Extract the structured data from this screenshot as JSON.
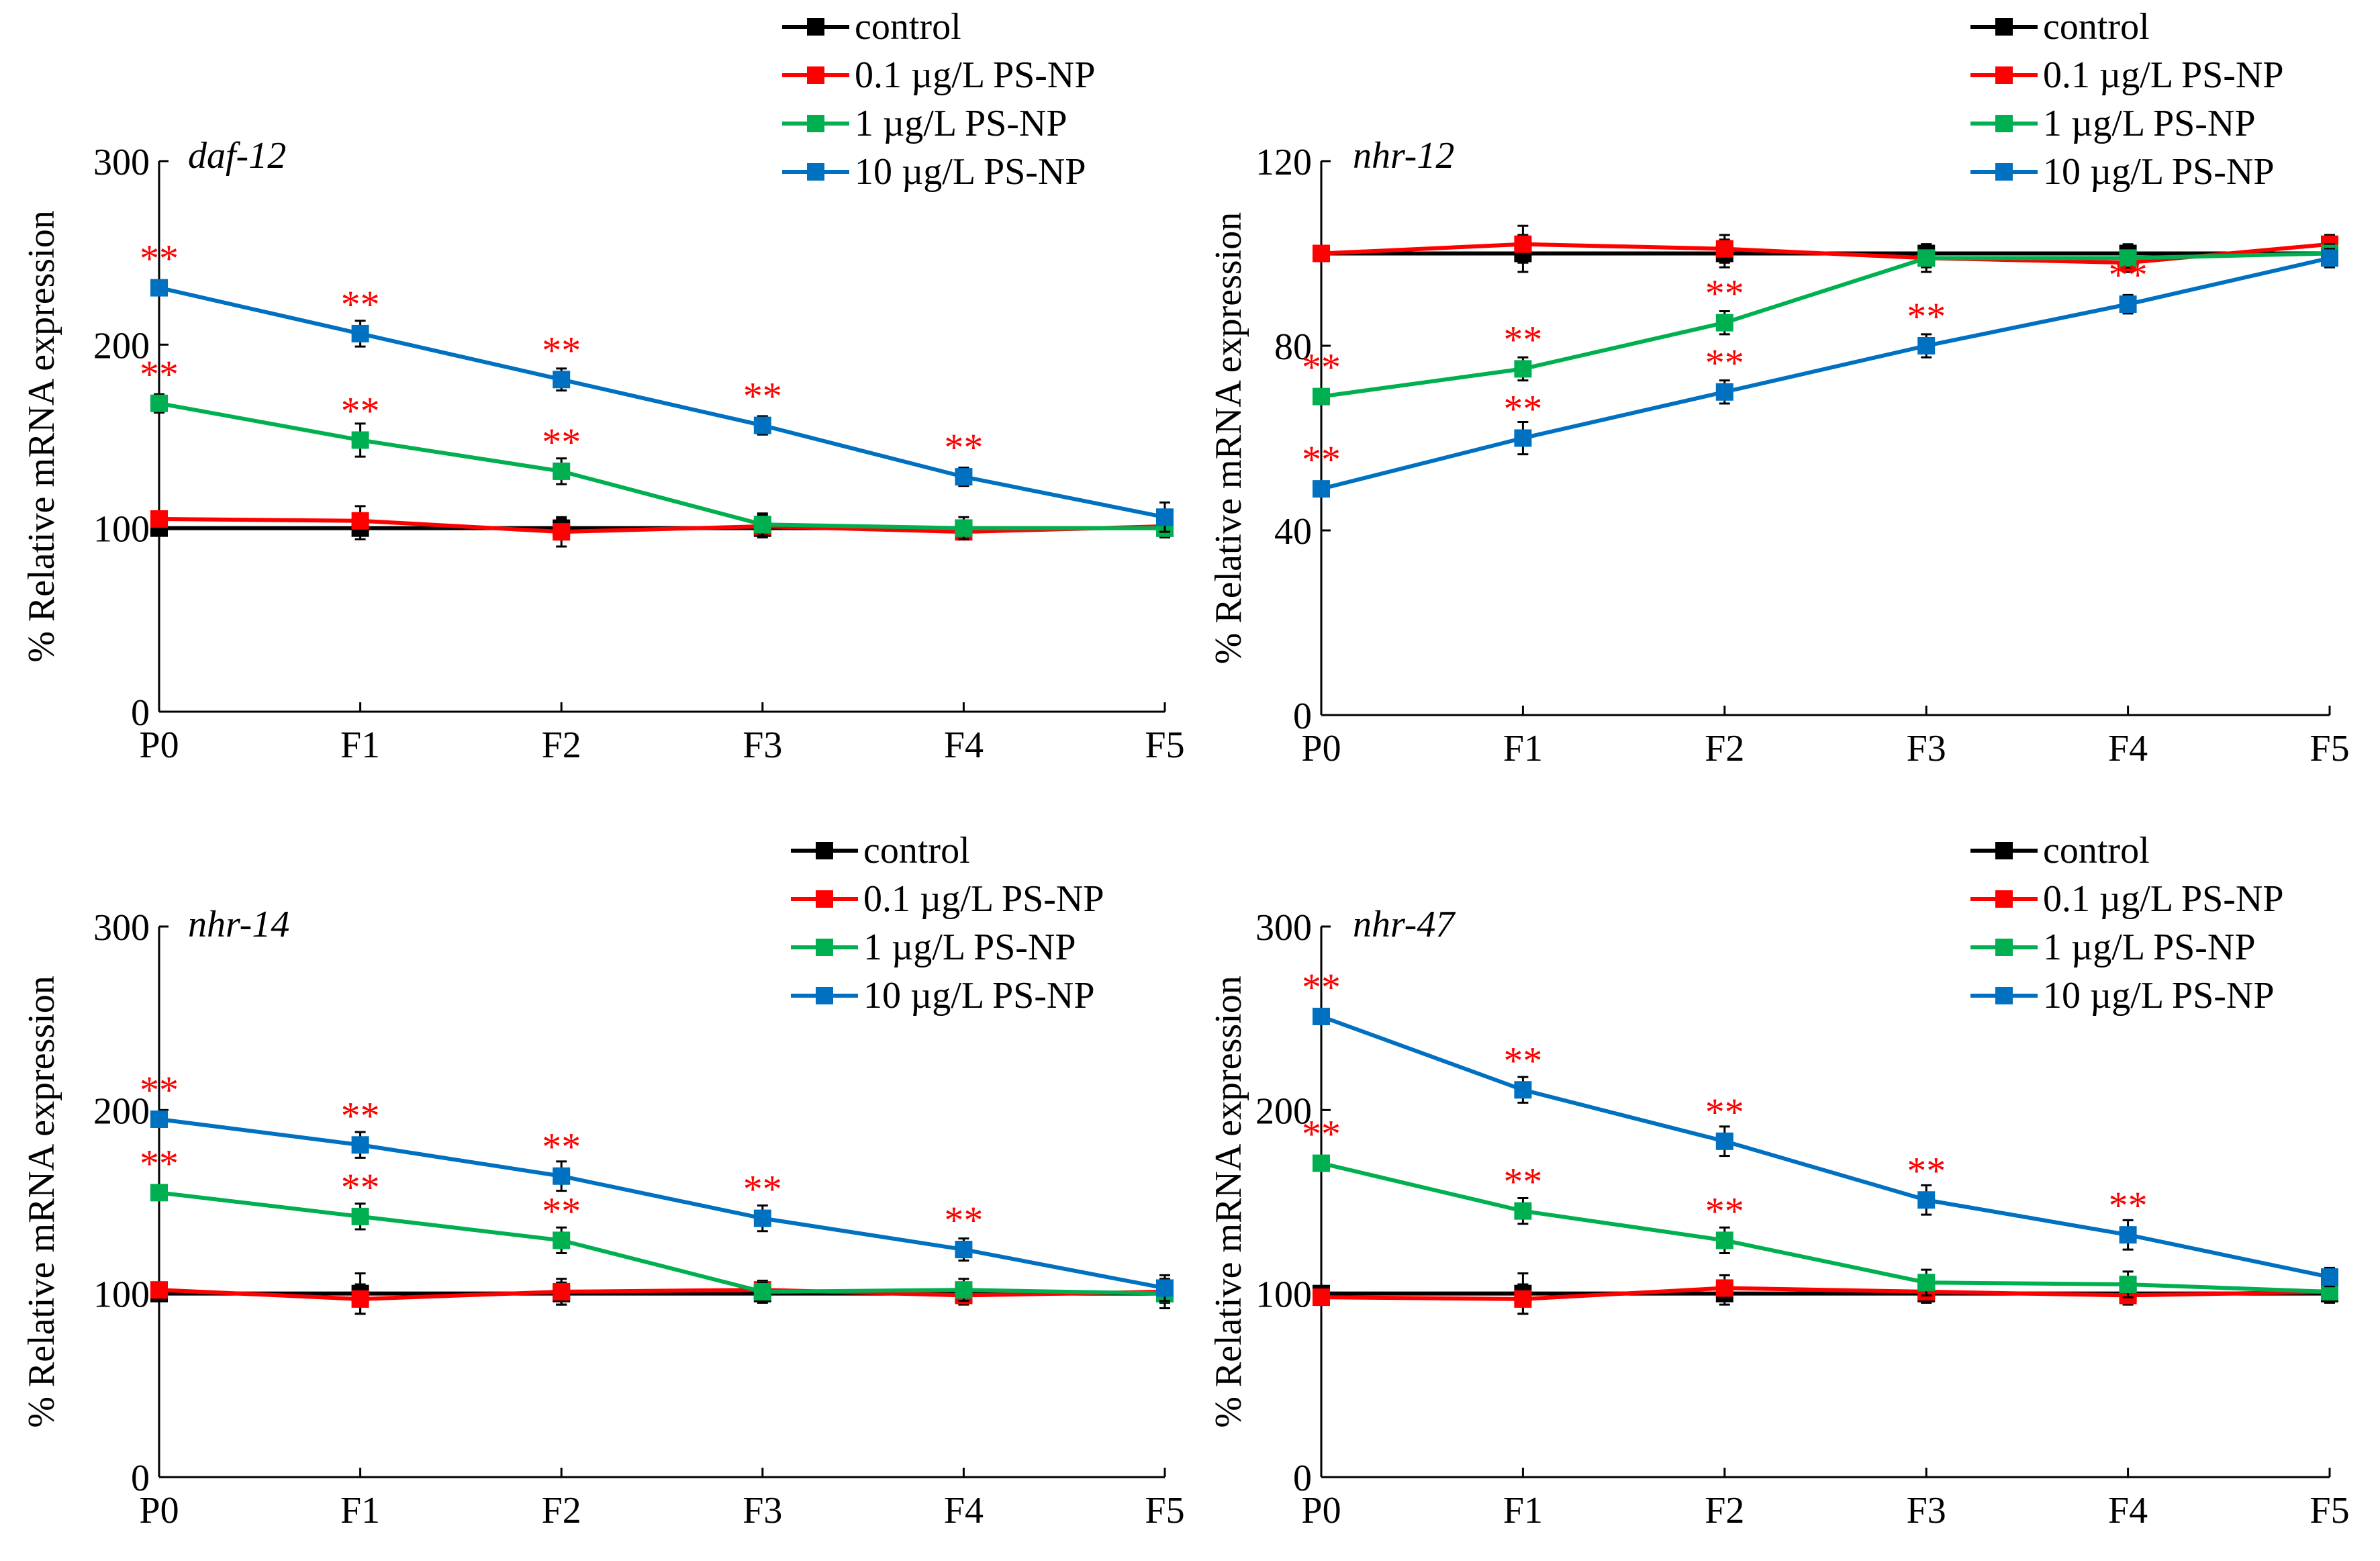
{
  "colors": {
    "control": "#000000",
    "low": "#ff0000",
    "mid": "#00b050",
    "high": "#0070c0",
    "significance": "#ff0000"
  },
  "significance_marker": "**",
  "chart_data": [
    {
      "type": "line",
      "gene_label": "daf-12",
      "ylabel": "% Relative  mRNA expression",
      "categories": [
        "P0",
        "F1",
        "F2",
        "F3",
        "F4",
        "F5"
      ],
      "ylim": [
        0,
        300
      ],
      "yticks": [
        0,
        100,
        200,
        300
      ],
      "legend_position": "top-right",
      "series": [
        {
          "name": "control",
          "color": "#000000",
          "values": [
            100,
            100,
            100,
            100,
            100,
            100
          ],
          "errors": [
            4,
            6,
            5,
            4,
            4,
            5
          ],
          "significant": [
            false,
            false,
            false,
            false,
            false,
            false
          ]
        },
        {
          "name": "0.1 µg/L PS-NP",
          "color": "#ff0000",
          "values": [
            105,
            104,
            98,
            101,
            98,
            101
          ],
          "errors": [
            4,
            8,
            8,
            6,
            4,
            4
          ],
          "significant": [
            false,
            false,
            false,
            false,
            false,
            false
          ]
        },
        {
          "name": "1 µg/L PS-NP",
          "color": "#00b050",
          "values": [
            168,
            148,
            131,
            102,
            100,
            100
          ],
          "errors": [
            5,
            9,
            7,
            6,
            6,
            5
          ],
          "significant": [
            true,
            true,
            true,
            false,
            false,
            false
          ]
        },
        {
          "name": "10 µg/L PS-NP",
          "color": "#0070c0",
          "values": [
            231,
            206,
            181,
            156,
            128,
            106
          ],
          "errors": [
            4,
            7,
            6,
            5,
            5,
            8
          ],
          "significant": [
            true,
            true,
            true,
            true,
            true,
            false
          ]
        }
      ]
    },
    {
      "type": "line",
      "gene_label": "nhr-12",
      "ylabel": "% Relative  mRNA expression",
      "categories": [
        "P0",
        "F1",
        "F2",
        "F3",
        "F4",
        "F5"
      ],
      "ylim": [
        0,
        120
      ],
      "yticks": [
        0,
        40,
        80,
        120
      ],
      "legend_position": "top-right",
      "series": [
        {
          "name": "control",
          "color": "#000000",
          "values": [
            100,
            100,
            100,
            100,
            100,
            100
          ],
          "errors": [
            1.5,
            4,
            3,
            2,
            2,
            2
          ],
          "significant": [
            false,
            false,
            false,
            false,
            false,
            false
          ]
        },
        {
          "name": "0.1 µg/L PS-NP",
          "color": "#ff0000",
          "values": [
            100,
            102,
            101,
            99,
            98,
            102
          ],
          "errors": [
            1.5,
            4,
            3,
            2,
            2,
            2
          ],
          "significant": [
            false,
            false,
            false,
            false,
            false,
            false
          ]
        },
        {
          "name": "1 µg/L PS-NP",
          "color": "#00b050",
          "values": [
            69,
            75,
            85,
            99,
            99,
            100
          ],
          "errors": [
            1.5,
            2.5,
            2.5,
            3,
            2,
            2
          ],
          "significant": [
            true,
            true,
            true,
            false,
            false,
            false
          ]
        },
        {
          "name": "10 µg/L PS-NP",
          "color": "#0070c0",
          "values": [
            49,
            60,
            70,
            80,
            89,
            99
          ],
          "errors": [
            1.5,
            3.5,
            2.5,
            2.5,
            2,
            2
          ],
          "significant": [
            true,
            true,
            true,
            true,
            true,
            false
          ]
        }
      ]
    },
    {
      "type": "line",
      "gene_label": "nhr-14",
      "ylabel": "% Relative  mRNA expression",
      "categories": [
        "P0",
        "F1",
        "F2",
        "F3",
        "F4",
        "F5"
      ],
      "ylim": [
        0,
        300
      ],
      "yticks": [
        0,
        100,
        200,
        300
      ],
      "legend_position": "top-right",
      "series": [
        {
          "name": "control",
          "color": "#000000",
          "values": [
            100,
            100,
            100,
            100,
            100,
            100
          ],
          "errors": [
            4,
            11,
            6,
            5,
            4,
            8
          ],
          "significant": [
            false,
            false,
            false,
            false,
            false,
            false
          ]
        },
        {
          "name": "0.1 µg/L PS-NP",
          "color": "#ff0000",
          "values": [
            102,
            97,
            101,
            102,
            99,
            101
          ],
          "errors": [
            4,
            8,
            7,
            5,
            5,
            5
          ],
          "significant": [
            false,
            false,
            false,
            false,
            false,
            false
          ]
        },
        {
          "name": "1 µg/L PS-NP",
          "color": "#00b050",
          "values": [
            155,
            142,
            129,
            101,
            102,
            100
          ],
          "errors": [
            4,
            7,
            7,
            5,
            6,
            5
          ],
          "significant": [
            true,
            true,
            true,
            false,
            false,
            false
          ]
        },
        {
          "name": "10 µg/L PS-NP",
          "color": "#0070c0",
          "values": [
            195,
            181,
            164,
            141,
            124,
            103
          ],
          "errors": [
            4,
            7,
            8,
            7,
            6,
            7
          ],
          "significant": [
            true,
            true,
            true,
            true,
            true,
            false
          ]
        }
      ]
    },
    {
      "type": "line",
      "gene_label": "nhr-47",
      "ylabel": "% Relative  mRNA expression",
      "categories": [
        "P0",
        "F1",
        "F2",
        "F3",
        "F4",
        "F5"
      ],
      "ylim": [
        0,
        300
      ],
      "yticks": [
        0,
        100,
        200,
        300
      ],
      "legend_position": "top-right",
      "series": [
        {
          "name": "control",
          "color": "#000000",
          "values": [
            100,
            100,
            100,
            100,
            100,
            100
          ],
          "errors": [
            4,
            11,
            6,
            5,
            4,
            5
          ],
          "significant": [
            false,
            false,
            false,
            false,
            false,
            false
          ]
        },
        {
          "name": "0.1 µg/L PS-NP",
          "color": "#ff0000",
          "values": [
            98,
            97,
            103,
            101,
            99,
            101
          ],
          "errors": [
            4,
            8,
            7,
            5,
            5,
            4
          ],
          "significant": [
            false,
            false,
            false,
            false,
            false,
            false
          ]
        },
        {
          "name": "1 µg/L PS-NP",
          "color": "#00b050",
          "values": [
            171,
            145,
            129,
            106,
            105,
            101
          ],
          "errors": [
            4,
            7,
            7,
            7,
            7,
            5
          ],
          "significant": [
            true,
            true,
            true,
            false,
            false,
            false
          ]
        },
        {
          "name": "10 µg/L PS-NP",
          "color": "#0070c0",
          "values": [
            251,
            211,
            183,
            151,
            132,
            109
          ],
          "errors": [
            4,
            7,
            8,
            8,
            8,
            5
          ],
          "significant": [
            true,
            true,
            true,
            true,
            true,
            false
          ]
        }
      ]
    }
  ]
}
